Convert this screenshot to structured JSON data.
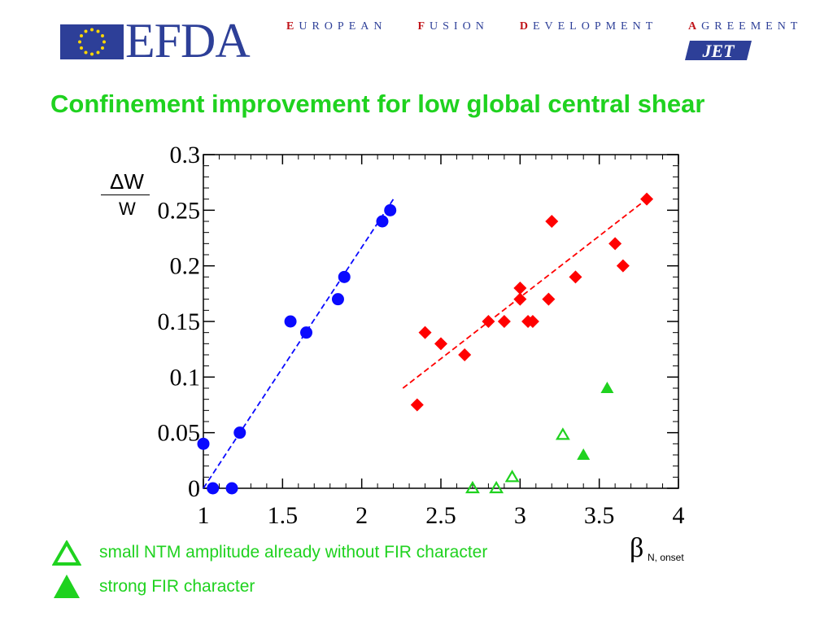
{
  "header": {
    "logo_text": "EFDA",
    "agreement_words": [
      {
        "cap": "E",
        "rest": "UROPEAN"
      },
      {
        "cap": "F",
        "rest": "USION"
      },
      {
        "cap": "D",
        "rest": "EVELOPMENT"
      },
      {
        "cap": "A",
        "rest": "GREEMENT"
      }
    ],
    "jet_logo": "JET",
    "colors": {
      "efda_blue": "#2d3f98",
      "flag_star": "#ffd700",
      "agreement_accent": "#c0141a"
    }
  },
  "slide": {
    "title": "Confinement improvement for low global central shear",
    "title_color": "#1fd21f"
  },
  "chart_data": {
    "type": "scatter",
    "title": "",
    "ylabel_numerator": "ΔW",
    "ylabel_denominator": "W",
    "xlabel_symbol": "β",
    "xlabel_subscript": "N, onset",
    "xlim": [
      1,
      4
    ],
    "ylim": [
      0,
      0.3
    ],
    "xticks": [
      "1",
      "1.5",
      "2",
      "2.5",
      "3",
      "3.5",
      "4"
    ],
    "yticks": [
      "0",
      "0.05",
      "0.1",
      "0.15",
      "0.2",
      "0.25",
      "0.3"
    ],
    "grid": false,
    "series": [
      {
        "marker": "circle",
        "color": "#0a0aff",
        "points": [
          [
            1.0,
            0.04
          ],
          [
            1.06,
            0.0
          ],
          [
            1.18,
            0.0
          ],
          [
            1.23,
            0.05
          ],
          [
            1.55,
            0.15
          ],
          [
            1.65,
            0.14
          ],
          [
            1.85,
            0.17
          ],
          [
            1.89,
            0.19
          ],
          [
            2.13,
            0.24
          ],
          [
            2.18,
            0.25
          ]
        ],
        "fit_line": [
          [
            1.0,
            0.0
          ],
          [
            2.2,
            0.26
          ]
        ]
      },
      {
        "marker": "diamond",
        "color": "#ff0000",
        "points": [
          [
            2.35,
            0.075
          ],
          [
            2.4,
            0.14
          ],
          [
            2.5,
            0.13
          ],
          [
            2.65,
            0.12
          ],
          [
            2.8,
            0.15
          ],
          [
            2.9,
            0.15
          ],
          [
            3.0,
            0.17
          ],
          [
            3.0,
            0.18
          ],
          [
            3.05,
            0.15
          ],
          [
            3.08,
            0.15
          ],
          [
            3.18,
            0.17
          ],
          [
            3.2,
            0.24
          ],
          [
            3.35,
            0.19
          ],
          [
            3.6,
            0.22
          ],
          [
            3.65,
            0.2
          ],
          [
            3.8,
            0.26
          ]
        ],
        "fit_line": [
          [
            2.26,
            0.09
          ],
          [
            3.8,
            0.26
          ]
        ]
      },
      {
        "name": "small NTM amplitude already without FIR character",
        "marker": "triangle-open",
        "color": "#1fd21f",
        "points": [
          [
            2.7,
            0.0
          ],
          [
            2.85,
            0.0
          ],
          [
            2.95,
            0.01
          ],
          [
            3.27,
            0.048
          ]
        ]
      },
      {
        "name": "strong FIR character",
        "marker": "triangle-filled",
        "color": "#1fd21f",
        "points": [
          [
            3.4,
            0.03
          ],
          [
            3.55,
            0.09
          ]
        ]
      }
    ]
  }
}
